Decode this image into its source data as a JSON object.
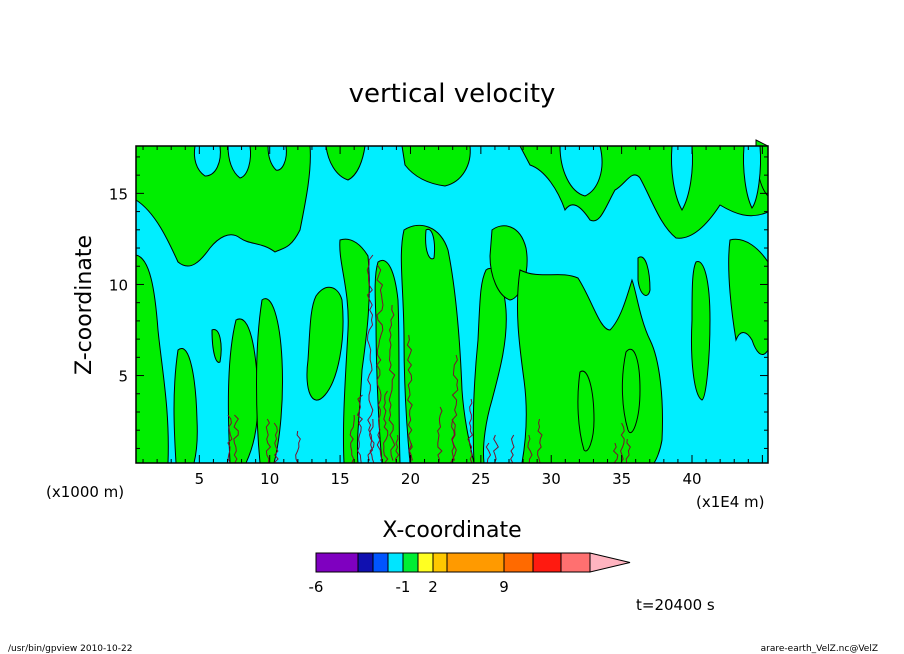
{
  "chart_data": {
    "type": "contour",
    "title": "vertical velocity",
    "xlabel": "X-coordinate",
    "ylabel": "Z-coordinate",
    "x_unit_left": "(x1000 m)",
    "x_unit_right": "(x1E4 m)",
    "x_ticks": [
      "5",
      "10",
      "15",
      "20",
      "25",
      "30",
      "35",
      "40"
    ],
    "x_tick_values": [
      5,
      10,
      15,
      20,
      25,
      30,
      35,
      40
    ],
    "y_ticks": [
      "5",
      "10",
      "15"
    ],
    "y_tick_values": [
      5,
      10,
      15
    ],
    "xlim": [
      0.5,
      45.4
    ],
    "ylim": [
      0.2,
      17.6
    ],
    "colors": {
      "negative": "#00eeff",
      "positive": "#00ee00",
      "contour_line": "#000000",
      "fine_contour": "#7a1030"
    },
    "colorbar": {
      "colors": [
        "#7f00c0",
        "#1010b0",
        "#0055ff",
        "#00e5ff",
        "#00ee33",
        "#ffff22",
        "#ffc800",
        "#ff9a00",
        "#ff6a00",
        "#ff1a10",
        "#ff7070",
        "#ffb4c0"
      ],
      "labels": [
        "-6",
        "-1",
        "2",
        "9"
      ]
    },
    "time_label": "t=20400 s"
  },
  "footer": {
    "left": "/usr/bin/gpview  2010-10-22",
    "right": "arare-earth_VelZ.nc@VelZ"
  }
}
